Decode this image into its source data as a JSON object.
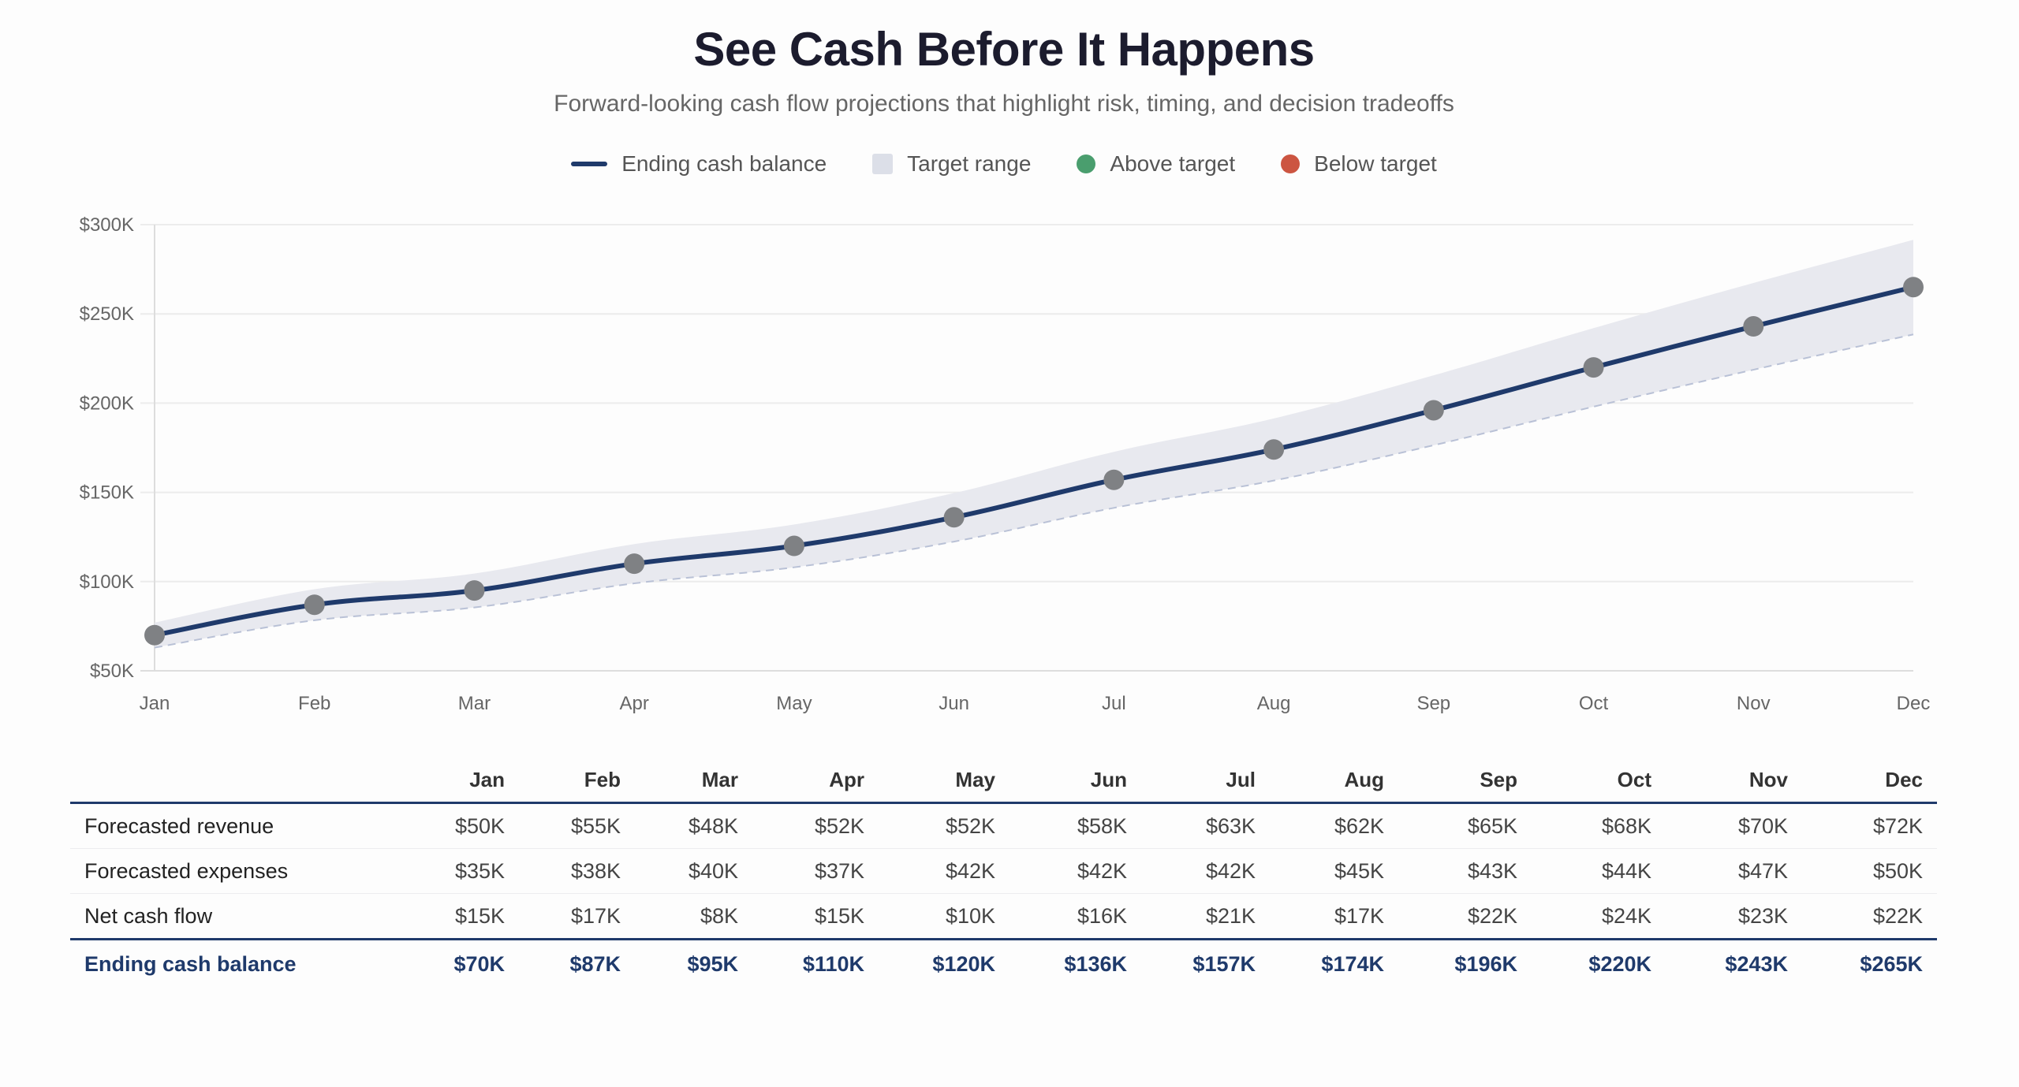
{
  "header": {
    "title": "See Cash Before It Happens",
    "subtitle": "Forward-looking cash flow projections that highlight risk, timing, and decision tradeoffs"
  },
  "legend": [
    {
      "label": "Ending cash balance",
      "swatch": "line",
      "color": "#1f3a6b"
    },
    {
      "label": "Target range",
      "swatch": "box",
      "color": "#dcdfe8"
    },
    {
      "label": "Above target",
      "swatch": "dot",
      "color": "#4a9e6e"
    },
    {
      "label": "Below target",
      "swatch": "dot",
      "color": "#cc5541"
    }
  ],
  "colors": {
    "line": "#1f3a6b",
    "band_fill": "#e8e9ef",
    "band_lower_dash": "#b9c1d6",
    "point": "#7f8184",
    "grid": "#ececec",
    "axis": "#dddddd"
  },
  "chart_data": {
    "type": "line",
    "title": "See Cash Before It Happens",
    "subtitle": "Forward-looking cash flow projections that highlight risk, timing, and decision tradeoffs",
    "x": [
      "Jan",
      "Feb",
      "Mar",
      "Apr",
      "May",
      "Jun",
      "Jul",
      "Aug",
      "Sep",
      "Oct",
      "Nov",
      "Dec"
    ],
    "series": [
      {
        "name": "Ending cash balance",
        "values": [
          70,
          87,
          95,
          110,
          120,
          136,
          157,
          174,
          196,
          220,
          243,
          265
        ],
        "unit": "K USD"
      },
      {
        "name": "Target range (upper)",
        "values": [
          77,
          95.7,
          104.5,
          121,
          132,
          149.6,
          172.7,
          191.4,
          215.6,
          242,
          267.3,
          291.5
        ]
      },
      {
        "name": "Target range (lower)",
        "values": [
          63,
          78.3,
          85.5,
          99,
          108,
          122.4,
          141.3,
          156.6,
          176.4,
          198,
          218.7,
          238.5
        ]
      }
    ],
    "ylim": [
      50,
      300
    ],
    "yticks": [
      50,
      100,
      150,
      200,
      250,
      300
    ],
    "ytick_labels": [
      "$50K",
      "$100K",
      "$150K",
      "$200K",
      "$250K",
      "$300K"
    ],
    "xlabel": "",
    "ylabel": "",
    "grid": true,
    "legend": [
      "Ending cash balance",
      "Target range",
      "Above target",
      "Below target"
    ],
    "legend_position": "top-center"
  },
  "table": {
    "columns": [
      "",
      "Jan",
      "Feb",
      "Mar",
      "Apr",
      "May",
      "Jun",
      "Jul",
      "Aug",
      "Sep",
      "Oct",
      "Nov",
      "Dec"
    ],
    "rows": [
      {
        "label": "Forecasted revenue",
        "values": [
          "$50K",
          "$55K",
          "$48K",
          "$52K",
          "$52K",
          "$58K",
          "$63K",
          "$62K",
          "$65K",
          "$68K",
          "$70K",
          "$72K"
        ]
      },
      {
        "label": "Forecasted expenses",
        "values": [
          "$35K",
          "$38K",
          "$40K",
          "$37K",
          "$42K",
          "$42K",
          "$42K",
          "$45K",
          "$43K",
          "$44K",
          "$47K",
          "$50K"
        ]
      },
      {
        "label": "Net cash flow",
        "values": [
          "$15K",
          "$17K",
          "$8K",
          "$15K",
          "$10K",
          "$16K",
          "$21K",
          "$17K",
          "$22K",
          "$24K",
          "$23K",
          "$22K"
        ]
      },
      {
        "label": "Ending cash balance",
        "values": [
          "$70K",
          "$87K",
          "$95K",
          "$110K",
          "$120K",
          "$136K",
          "$157K",
          "$174K",
          "$196K",
          "$220K",
          "$243K",
          "$265K"
        ]
      }
    ]
  }
}
